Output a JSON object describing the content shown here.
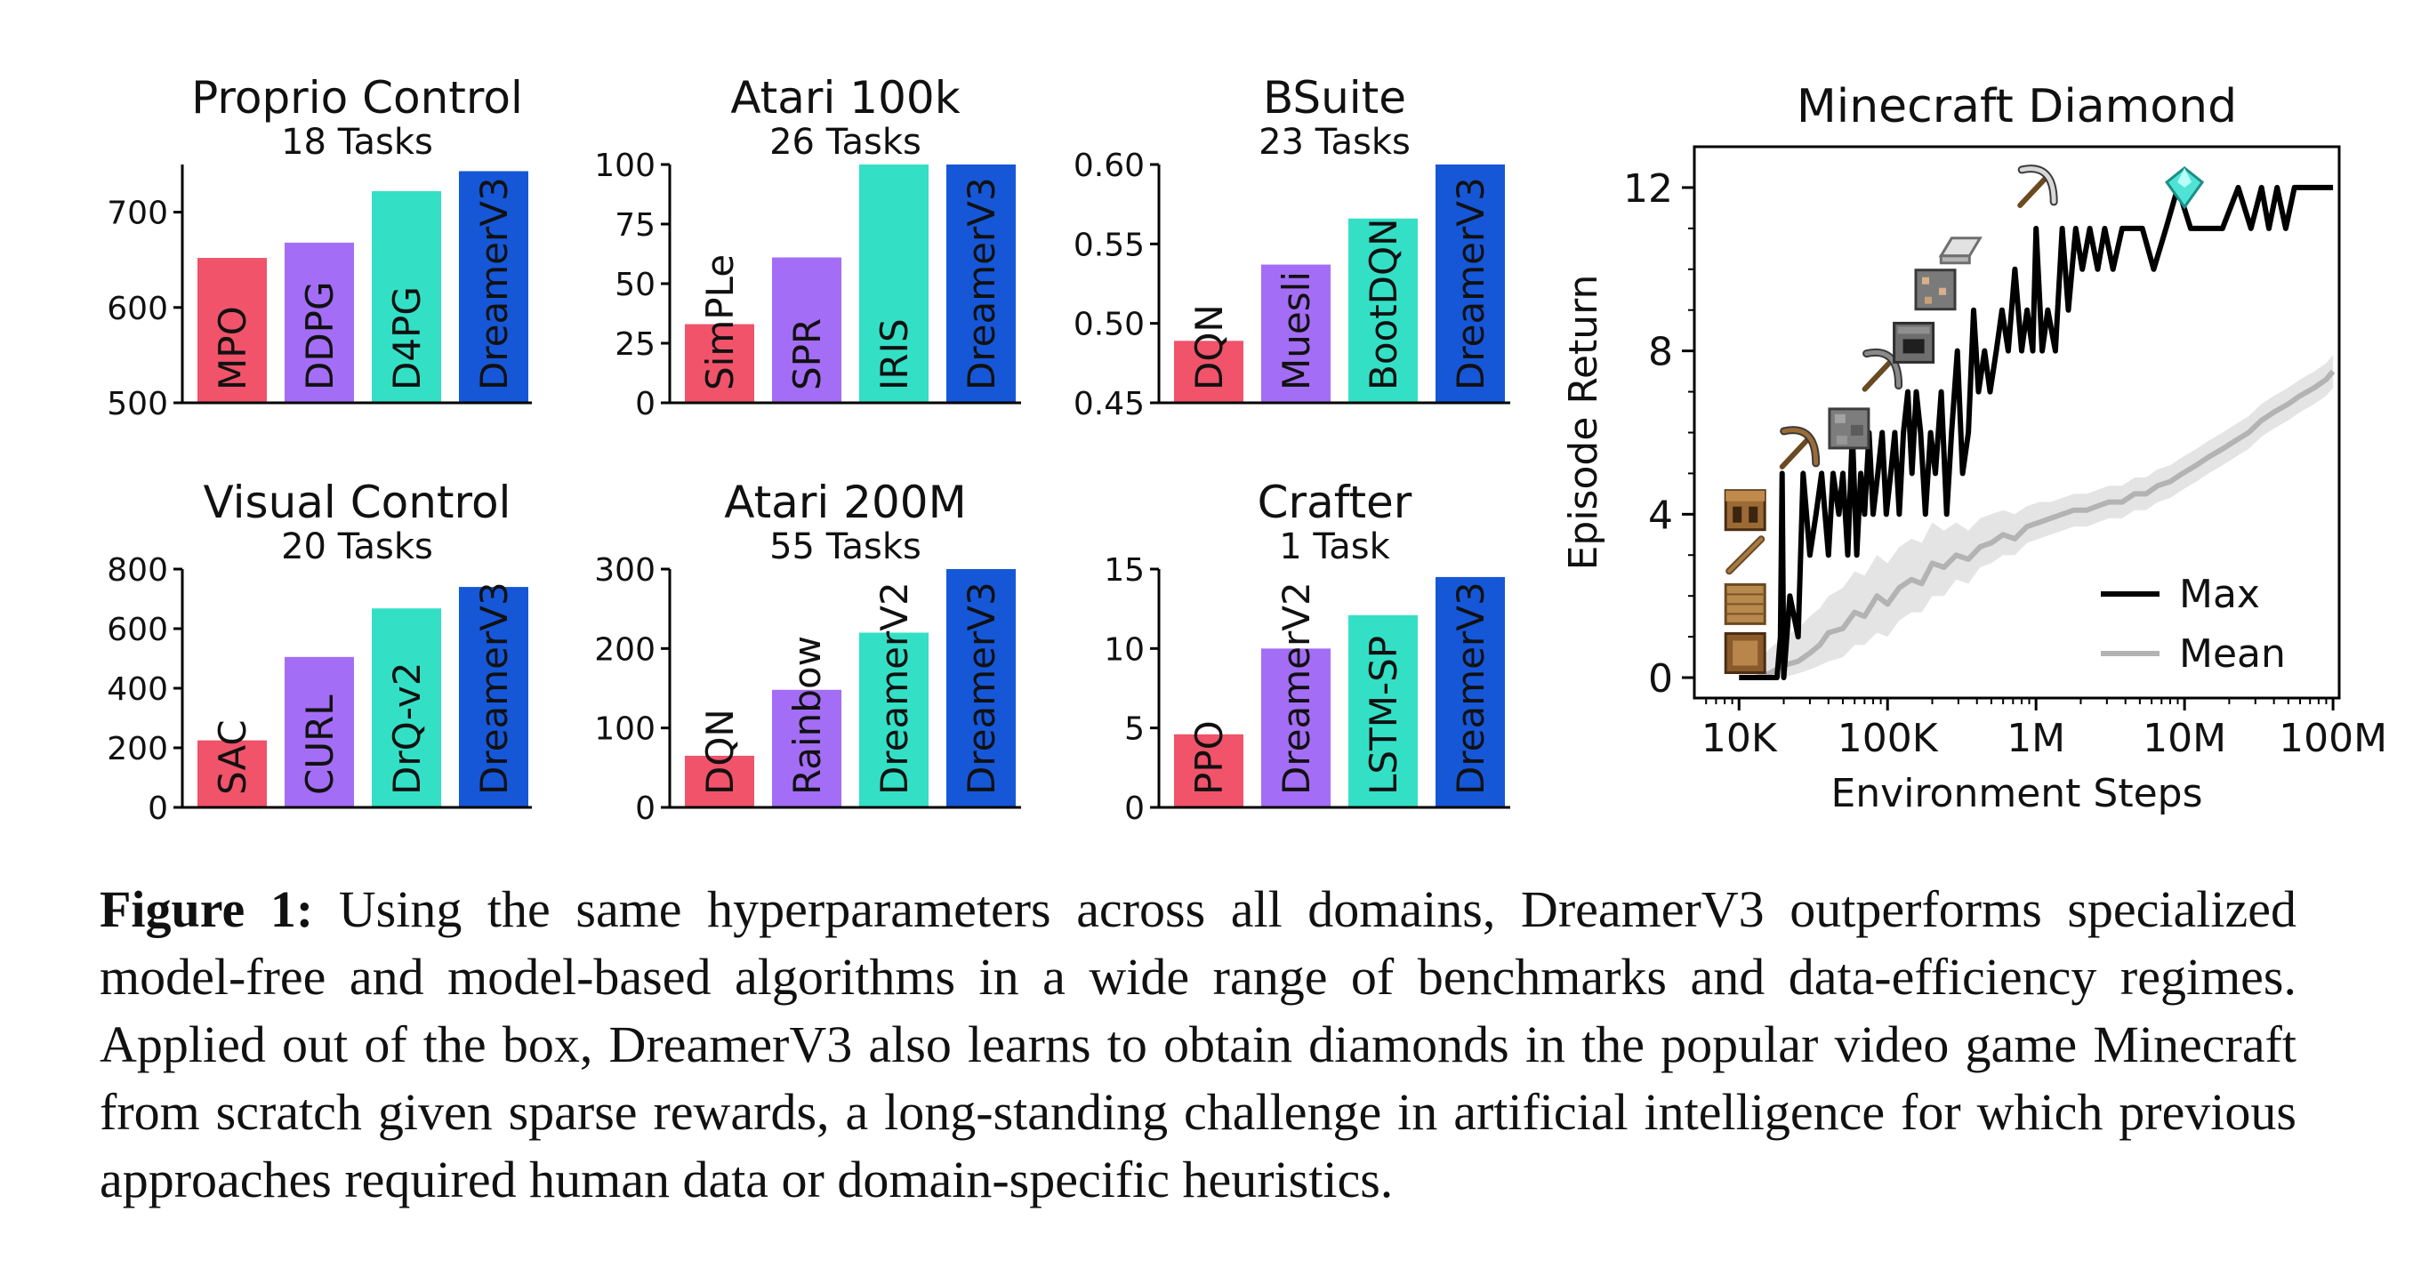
{
  "colors": {
    "red": "#f0536a",
    "purple": "#a46df5",
    "teal": "#33e0c5",
    "blue": "#1657d8",
    "max_line": "#000000",
    "mean_line": "#b3b3b3",
    "mean_band": "#e4e4e4"
  },
  "chart_data": [
    {
      "type": "bar",
      "title": "Proprio Control",
      "subtitle": "18 Tasks",
      "categories": [
        "MPO",
        "DDPG",
        "D4PG",
        "DreamerV3"
      ],
      "values": [
        652,
        668,
        722,
        743
      ],
      "ylim": [
        500,
        750
      ],
      "yticks": [
        500,
        600,
        700
      ],
      "ytick_labels": [
        "500",
        "600",
        "700"
      ],
      "bar_colors": [
        "red",
        "purple",
        "teal",
        "blue"
      ]
    },
    {
      "type": "bar",
      "title": "Atari 100k",
      "subtitle": "26 Tasks",
      "categories": [
        "SimPLe",
        "SPR",
        "IRIS",
        "DreamerV3"
      ],
      "values": [
        33,
        61,
        105,
        112
      ],
      "ylim": [
        0,
        100
      ],
      "yticks": [
        0,
        25,
        50,
        75,
        100
      ],
      "ytick_labels": [
        "0",
        "25",
        "50",
        "75",
        "100"
      ],
      "bar_colors": [
        "red",
        "purple",
        "teal",
        "blue"
      ]
    },
    {
      "type": "bar",
      "title": "BSuite",
      "subtitle": "23 Tasks",
      "categories": [
        "DQN",
        "Muesli",
        "BootDQN",
        "DreamerV3"
      ],
      "values": [
        0.489,
        0.537,
        0.566,
        0.62
      ],
      "ylim": [
        0.45,
        0.6
      ],
      "yticks": [
        0.45,
        0.5,
        0.55,
        0.6
      ],
      "ytick_labels": [
        "0.45",
        "0.50",
        "0.55",
        "0.60"
      ],
      "bar_colors": [
        "red",
        "purple",
        "teal",
        "blue"
      ]
    },
    {
      "type": "bar",
      "title": "Visual Control",
      "subtitle": "20 Tasks",
      "categories": [
        "SAC",
        "CURL",
        "DrQ-v2",
        "DreamerV3"
      ],
      "values": [
        225,
        505,
        668,
        740
      ],
      "ylim": [
        0,
        800
      ],
      "yticks": [
        0,
        200,
        400,
        600,
        800
      ],
      "ytick_labels": [
        "0",
        "200",
        "400",
        "600",
        "800"
      ],
      "bar_colors": [
        "red",
        "purple",
        "teal",
        "blue"
      ]
    },
    {
      "type": "bar",
      "title": "Atari 200M",
      "subtitle": "55 Tasks",
      "categories": [
        "DQN",
        "Rainbow",
        "DreamerV2",
        "DreamerV3"
      ],
      "values": [
        65,
        148,
        220,
        303
      ],
      "ylim": [
        0,
        300
      ],
      "yticks": [
        0,
        100,
        200,
        300
      ],
      "ytick_labels": [
        "0",
        "100",
        "200",
        "300"
      ],
      "bar_colors": [
        "red",
        "purple",
        "teal",
        "blue"
      ]
    },
    {
      "type": "bar",
      "title": "Crafter",
      "subtitle": "1 Task",
      "categories": [
        "PPO",
        "DreamerV2",
        "LSTM-SP",
        "DreamerV3"
      ],
      "values": [
        4.6,
        10.0,
        12.1,
        14.5
      ],
      "ylim": [
        0,
        15
      ],
      "yticks": [
        0,
        5,
        10,
        15
      ],
      "ytick_labels": [
        "0",
        "5",
        "10",
        "15"
      ],
      "bar_colors": [
        "red",
        "purple",
        "teal",
        "blue"
      ]
    },
    {
      "type": "line",
      "title": "Minecraft Diamond",
      "xlabel": "Environment Steps",
      "ylabel": "Episode Return",
      "xscale": "log",
      "xlim": [
        5000,
        110000000
      ],
      "ylim": [
        -0.5,
        13
      ],
      "xticks": [
        10000,
        100000,
        1000000,
        10000000,
        100000000
      ],
      "xtick_labels": [
        "10K",
        "100K",
        "1M",
        "10M",
        "100M"
      ],
      "yticks": [
        0,
        4,
        8,
        12
      ],
      "ytick_labels": [
        "0",
        "4",
        "8",
        "12"
      ],
      "legend_position": "lower-right",
      "series": [
        {
          "name": "Max",
          "color": "max_line",
          "x": [
            10000,
            13000,
            18000,
            19000,
            19500,
            20000,
            22000,
            25000,
            27000,
            30000,
            33000,
            36000,
            40000,
            43000,
            47000,
            50000,
            54000,
            58000,
            62000,
            66000,
            70000,
            75000,
            80000,
            86000,
            92000,
            98000,
            105000,
            112000,
            120000,
            128000,
            137000,
            146000,
            156000,
            167000,
            180000,
            195000,
            210000,
            230000,
            250000,
            270000,
            295000,
            320000,
            350000,
            380000,
            410000,
            450000,
            490000,
            540000,
            590000,
            650000,
            720000,
            800000,
            870000,
            950000,
            1000000,
            1100000,
            1200000,
            1350000,
            1500000,
            1650000,
            1850000,
            2050000,
            2300000,
            2600000,
            2900000,
            3300000,
            3800000,
            4400000,
            5200000,
            6200000,
            7500000,
            9000000,
            11000000,
            14000000,
            18000000,
            23000000,
            28000000,
            33000000,
            37000000,
            42000000,
            48000000,
            55000000,
            62000000,
            75000000,
            90000000,
            100000000
          ],
          "y": [
            0,
            0,
            0,
            1,
            5,
            0,
            2,
            1,
            5,
            3,
            4,
            5,
            3,
            5,
            4,
            5,
            3,
            6,
            3,
            5,
            4,
            6,
            4,
            5,
            6,
            4,
            5,
            6,
            4,
            6,
            7,
            5,
            7,
            6,
            4,
            6,
            5,
            7,
            4,
            6,
            8,
            5,
            6,
            9,
            7,
            8,
            7,
            8,
            9,
            8,
            10,
            8,
            9,
            8,
            11,
            8,
            9,
            8,
            11,
            9,
            11,
            10,
            11,
            10,
            11,
            10,
            11,
            11,
            11,
            10,
            11,
            12,
            11,
            11,
            11,
            12,
            11,
            12,
            11,
            12,
            11,
            12,
            12,
            12,
            12,
            12
          ]
        },
        {
          "name": "Mean",
          "color": "mean_line",
          "x": [
            10000,
            13000,
            16000,
            20000,
            25000,
            30000,
            35000,
            40000,
            50000,
            60000,
            70000,
            85000,
            100000,
            120000,
            145000,
            170000,
            200000,
            240000,
            290000,
            350000,
            420000,
            500000,
            600000,
            720000,
            870000,
            1050000,
            1250000,
            1500000,
            1800000,
            2200000,
            2600000,
            3100000,
            3800000,
            4600000,
            5500000,
            6600000,
            8000000,
            9700000,
            12000000,
            14500000,
            18000000,
            22000000,
            27000000,
            33000000,
            40000000,
            50000000,
            60000000,
            75000000,
            90000000,
            100000000
          ],
          "y": [
            0.0,
            0.0,
            0.1,
            0.3,
            0.4,
            0.6,
            0.8,
            1.1,
            1.2,
            1.6,
            1.5,
            2.0,
            1.8,
            2.2,
            2.4,
            2.3,
            2.8,
            2.7,
            3.0,
            2.9,
            3.2,
            3.3,
            3.5,
            3.4,
            3.7,
            3.8,
            3.9,
            4.0,
            4.1,
            4.1,
            4.2,
            4.3,
            4.3,
            4.5,
            4.5,
            4.7,
            4.8,
            5.0,
            5.2,
            5.4,
            5.6,
            5.8,
            6.0,
            6.3,
            6.5,
            6.7,
            6.9,
            7.1,
            7.3,
            7.5
          ],
          "band": {
            "low": [
              0.0,
              0.0,
              0.0,
              0.0,
              0.1,
              0.2,
              0.3,
              0.4,
              0.5,
              0.8,
              0.8,
              1.1,
              1.0,
              1.4,
              1.6,
              1.6,
              2.0,
              2.0,
              2.4,
              2.3,
              2.7,
              2.8,
              3.0,
              3.0,
              3.3,
              3.4,
              3.5,
              3.6,
              3.7,
              3.7,
              3.8,
              3.9,
              3.9,
              4.1,
              4.1,
              4.3,
              4.4,
              4.6,
              4.8,
              5.0,
              5.2,
              5.4,
              5.6,
              5.9,
              6.1,
              6.3,
              6.5,
              6.7,
              6.9,
              7.1
            ],
            "high": [
              0.2,
              0.4,
              0.7,
              1.0,
              1.2,
              1.5,
              1.7,
              2.0,
              2.2,
              2.6,
              2.5,
              3.0,
              2.8,
              3.2,
              3.4,
              3.3,
              3.8,
              3.6,
              3.8,
              3.6,
              3.9,
              4.0,
              4.1,
              4.0,
              4.2,
              4.3,
              4.3,
              4.4,
              4.5,
              4.5,
              4.6,
              4.7,
              4.7,
              4.9,
              4.9,
              5.1,
              5.2,
              5.4,
              5.6,
              5.8,
              6.0,
              6.2,
              6.4,
              6.7,
              6.9,
              7.1,
              7.3,
              7.5,
              7.7,
              7.9
            ]
          }
        }
      ],
      "item_icons": [
        {
          "icon": "log-icon",
          "x": 11000,
          "y": 0.6
        },
        {
          "icon": "planks-icon",
          "x": 11000,
          "y": 1.8
        },
        {
          "icon": "stick-icon",
          "x": 11000,
          "y": 3.0
        },
        {
          "icon": "crafting-table-icon",
          "x": 11000,
          "y": 4.1
        },
        {
          "icon": "wooden-pickaxe-icon",
          "x": 25000,
          "y": 5.6
        },
        {
          "icon": "cobblestone-icon",
          "x": 55000,
          "y": 6.1
        },
        {
          "icon": "stone-pickaxe-icon",
          "x": 90000,
          "y": 7.5
        },
        {
          "icon": "furnace-icon",
          "x": 150000,
          "y": 8.2
        },
        {
          "icon": "iron-ore-icon",
          "x": 210000,
          "y": 9.5
        },
        {
          "icon": "iron-ingot-icon",
          "x": 310000,
          "y": 10.5
        },
        {
          "icon": "iron-pickaxe-icon",
          "x": 1000000,
          "y": 12.0
        },
        {
          "icon": "diamond-icon",
          "x": 10000000,
          "y": 12.0
        }
      ]
    }
  ],
  "caption": {
    "label": "Figure 1:",
    "text": " Using the same hyperparameters across all domains, DreamerV3 outperforms specialized model-free and model-based algorithms in a wide range of benchmarks and data-efficiency regimes. Applied out of the box, DreamerV3 also learns to obtain diamonds in the popular video game Minecraft from scratch given sparse rewards, a long-standing challenge in artificial intelligence for which previous approaches required human data or domain-specific heuristics."
  }
}
